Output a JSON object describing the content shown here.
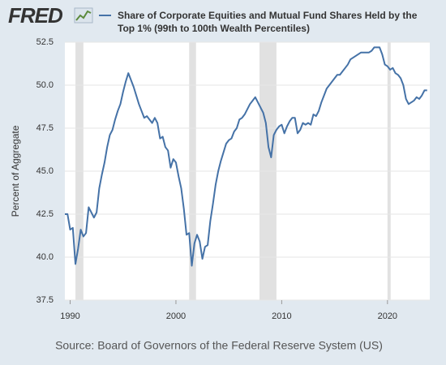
{
  "logo": "FRED",
  "chart_data": {
    "type": "line",
    "ylabel": "Percent of Aggregate",
    "source": "Source: Board of Governors of the Federal Reserve System (US)",
    "xlim": [
      1989.5,
      2024
    ],
    "xticks": [
      1990,
      2000,
      2010,
      2020
    ],
    "ylim": [
      37.5,
      52.5
    ],
    "yticks": [
      37.5,
      {
        "value": 40,
        "label": "40.0"
      },
      42.5,
      {
        "value": 45,
        "label": "45.0"
      },
      47.5,
      {
        "value": 50,
        "label": "50.0"
      },
      52.5
    ],
    "grid": true,
    "recession_color": "#e1e1e1",
    "recessions": [
      [
        1990.5,
        1991.25
      ],
      [
        2001.25,
        2001.9
      ],
      [
        2007.9,
        2009.5
      ],
      [
        2020.0,
        2020.3
      ]
    ],
    "x": [
      1989.5,
      1989.75,
      1990,
      1990.25,
      1990.5,
      1990.75,
      1991,
      1991.25,
      1991.5,
      1991.75,
      1992,
      1992.25,
      1992.5,
      1992.75,
      1993,
      1993.25,
      1993.5,
      1993.75,
      1994,
      1994.25,
      1994.5,
      1994.75,
      1995,
      1995.25,
      1995.5,
      1995.75,
      1996,
      1996.25,
      1996.5,
      1996.75,
      1997,
      1997.25,
      1997.5,
      1997.75,
      1998,
      1998.25,
      1998.5,
      1998.75,
      1999,
      1999.25,
      1999.5,
      1999.75,
      2000,
      2000.25,
      2000.5,
      2000.75,
      2001,
      2001.25,
      2001.5,
      2001.75,
      2002,
      2002.25,
      2002.5,
      2002.75,
      2003,
      2003.25,
      2003.5,
      2003.75,
      2004,
      2004.25,
      2004.5,
      2004.75,
      2005,
      2005.25,
      2005.5,
      2005.75,
      2006,
      2006.25,
      2006.5,
      2006.75,
      2007,
      2007.25,
      2007.5,
      2007.75,
      2008,
      2008.25,
      2008.5,
      2008.75,
      2009,
      2009.25,
      2009.5,
      2009.75,
      2010,
      2010.25,
      2010.5,
      2010.75,
      2011,
      2011.25,
      2011.5,
      2011.75,
      2012,
      2012.25,
      2012.5,
      2012.75,
      2013,
      2013.25,
      2013.5,
      2013.75,
      2014,
      2014.25,
      2014.5,
      2014.75,
      2015,
      2015.25,
      2015.5,
      2015.75,
      2016,
      2016.25,
      2016.5,
      2016.75,
      2017,
      2017.25,
      2017.5,
      2017.75,
      2018,
      2018.25,
      2018.5,
      2018.75,
      2019,
      2019.25,
      2019.5,
      2019.75,
      2020,
      2020.25,
      2020.5,
      2020.75,
      2021,
      2021.25,
      2021.5,
      2021.75,
      2022,
      2022.25,
      2022.5,
      2022.75,
      2023,
      2023.25,
      2023.5,
      2023.75
    ],
    "series": [
      {
        "name": "Share of Corporate Equities and Mutual Fund Shares Held by the Top 1% (99th to 100th Wealth Percentiles)",
        "color": "#4572a7",
        "values": [
          42.5,
          42.5,
          41.6,
          41.7,
          39.6,
          40.5,
          41.6,
          41.2,
          41.4,
          42.9,
          42.6,
          42.3,
          42.6,
          44.0,
          44.8,
          45.5,
          46.4,
          47.1,
          47.4,
          48.0,
          48.5,
          48.9,
          49.6,
          50.2,
          50.7,
          50.3,
          49.9,
          49.4,
          48.9,
          48.5,
          48.1,
          48.2,
          48.0,
          47.8,
          48.1,
          47.8,
          46.9,
          47.0,
          46.4,
          46.2,
          45.2,
          45.7,
          45.5,
          44.7,
          44.0,
          42.8,
          41.3,
          41.4,
          39.5,
          40.8,
          41.3,
          40.9,
          39.9,
          40.6,
          40.7,
          42.1,
          43.1,
          44.2,
          45.0,
          45.6,
          46.1,
          46.6,
          46.8,
          46.9,
          47.3,
          47.5,
          48.0,
          48.1,
          48.3,
          48.6,
          48.9,
          49.1,
          49.3,
          49.0,
          48.7,
          48.4,
          47.8,
          46.4,
          45.8,
          47.1,
          47.4,
          47.6,
          47.7,
          47.2,
          47.6,
          47.9,
          48.1,
          48.1,
          47.2,
          47.4,
          47.8,
          47.7,
          47.8,
          47.7,
          48.3,
          48.2,
          48.5,
          49.0,
          49.4,
          49.8,
          50.0,
          50.2,
          50.4,
          50.6,
          50.6,
          50.8,
          51.0,
          51.2,
          51.5,
          51.6,
          51.7,
          51.8,
          51.9,
          51.9,
          51.9,
          51.9,
          52.0,
          52.2,
          52.2,
          52.2,
          51.8,
          51.2,
          51.1,
          50.9,
          51.0,
          50.7,
          50.6,
          50.4,
          50.0,
          49.2,
          48.9,
          49.0,
          49.1,
          49.3,
          49.2,
          49.4,
          49.7,
          49.7
        ]
      }
    ]
  }
}
